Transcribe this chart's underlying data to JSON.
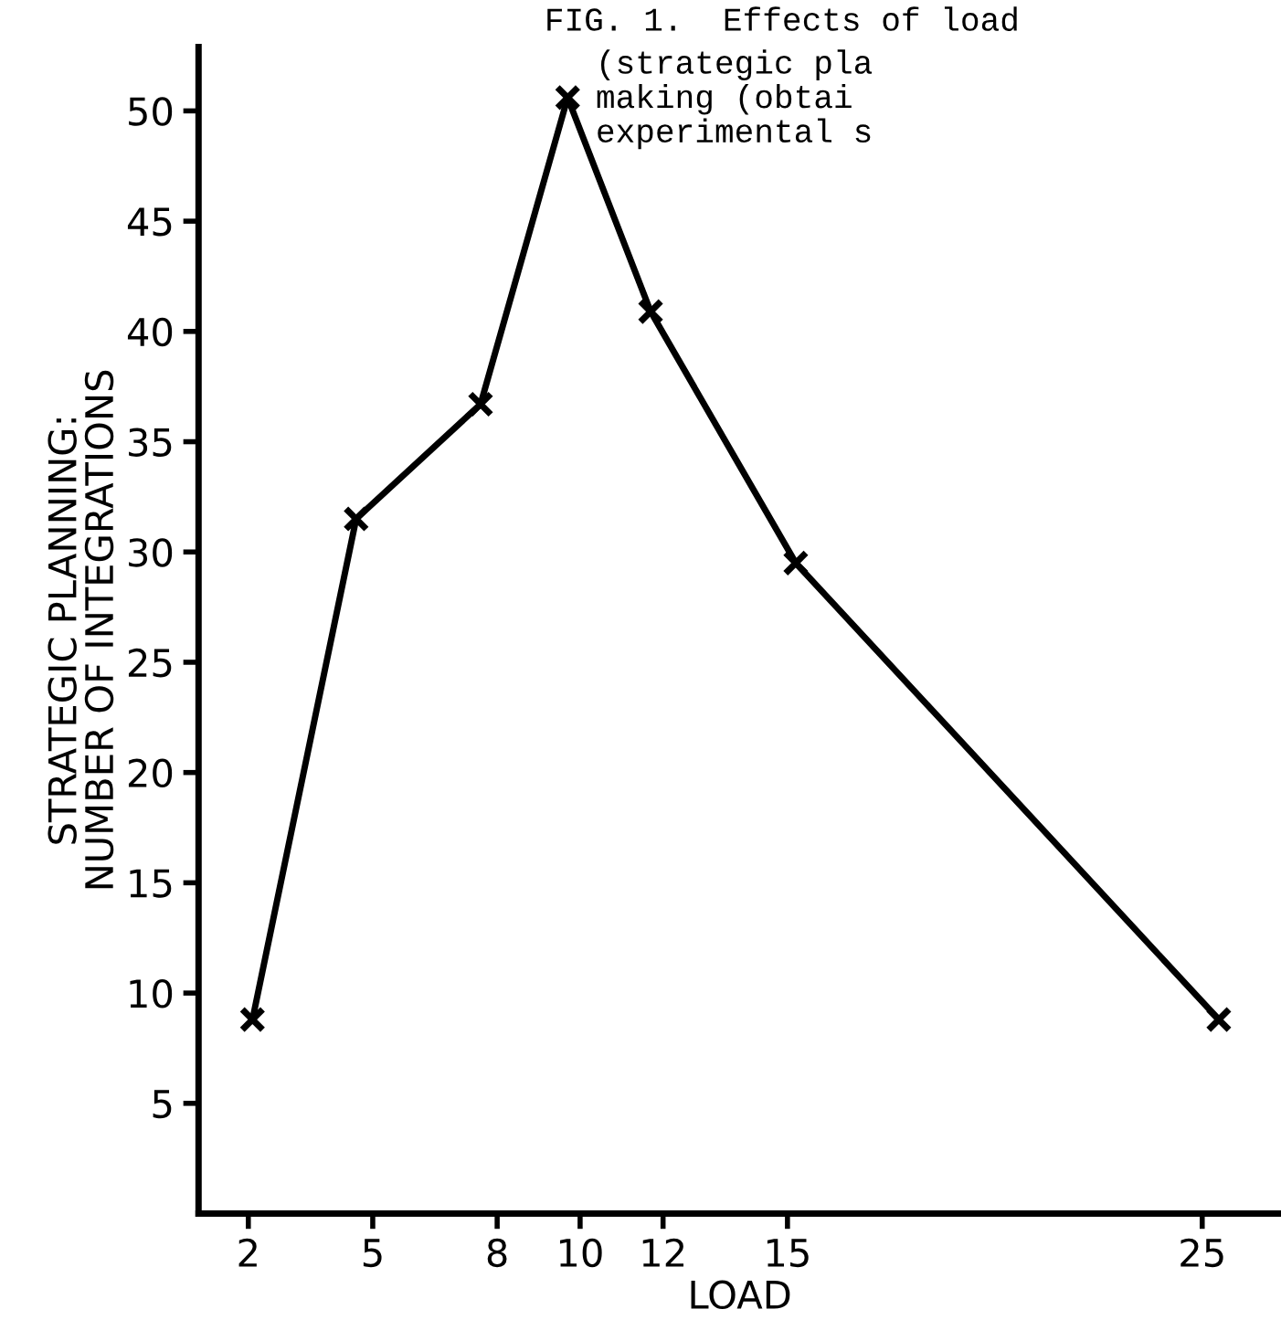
{
  "chart_data": {
    "type": "line",
    "title": "FIG. 1.  Effects of load",
    "subtitle": "(strategic pla\nmaking (obtai\nexperimental s",
    "xlabel": "LOAD",
    "ylabel": "STRATEGIC PLANNING:\nNUMBER OF INTEGRATIONS",
    "x": [
      2.1,
      4.6,
      7.6,
      9.7,
      11.7,
      15.2,
      25.4
    ],
    "series": [
      {
        "color": "#000000",
        "values": [
          8.8,
          31.5,
          36.7,
          50.6,
          40.9,
          29.5,
          8.8
        ]
      }
    ],
    "xlim": [
      0.8,
      26.9
    ],
    "xticks": [
      2,
      5,
      8,
      10,
      12,
      15,
      25
    ],
    "ylim": [
      0,
      52.9
    ],
    "yticks": [
      5,
      10,
      15,
      20,
      25,
      30,
      35,
      40,
      45,
      50
    ],
    "marker": "cross",
    "line_style": "solid",
    "grid": false,
    "legend": false
  }
}
